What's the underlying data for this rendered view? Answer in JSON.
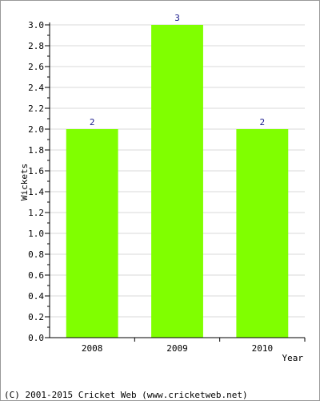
{
  "chart_data": {
    "type": "bar",
    "categories": [
      "2008",
      "2009",
      "2010"
    ],
    "values": [
      2,
      3,
      2
    ],
    "data_labels": [
      "2",
      "3",
      "2"
    ],
    "y_ticks": [
      "0.0",
      "0.2",
      "0.4",
      "0.6",
      "0.8",
      "1.0",
      "1.2",
      "1.4",
      "1.6",
      "1.8",
      "2.0",
      "2.2",
      "2.4",
      "2.6",
      "2.8",
      "3.0"
    ],
    "xlabel": "Year",
    "ylabel": "Wickets",
    "ylim": [
      0,
      3.0
    ],
    "grid": true,
    "bar_color": "#80ff00"
  },
  "footer": {
    "copyright": "(C) 2001-2015 Cricket Web (www.cricketweb.net)"
  }
}
